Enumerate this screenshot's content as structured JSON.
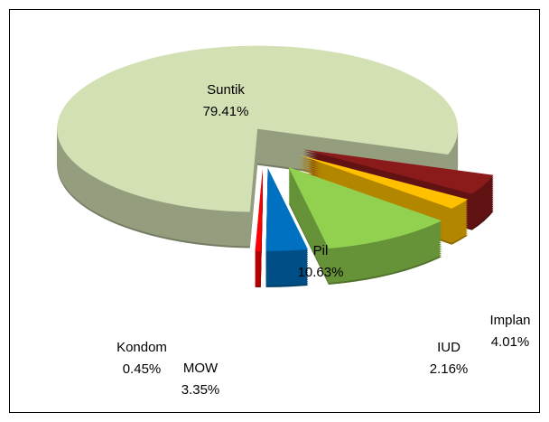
{
  "chart_data": {
    "type": "pie",
    "categories": [
      "Suntik",
      "Implan",
      "IUD",
      "Pil",
      "MOW",
      "Kondom"
    ],
    "values": [
      79.41,
      4.01,
      2.16,
      10.63,
      3.35,
      0.45
    ],
    "value_labels": [
      "79.41%",
      "4.01%",
      "2.16%",
      "10.63%",
      "3.35%",
      "0.45%"
    ],
    "colors": [
      "#d3e0b4",
      "#8b1a1a",
      "#ffc000",
      "#92d050",
      "#0070c0",
      "#ff0000"
    ]
  }
}
